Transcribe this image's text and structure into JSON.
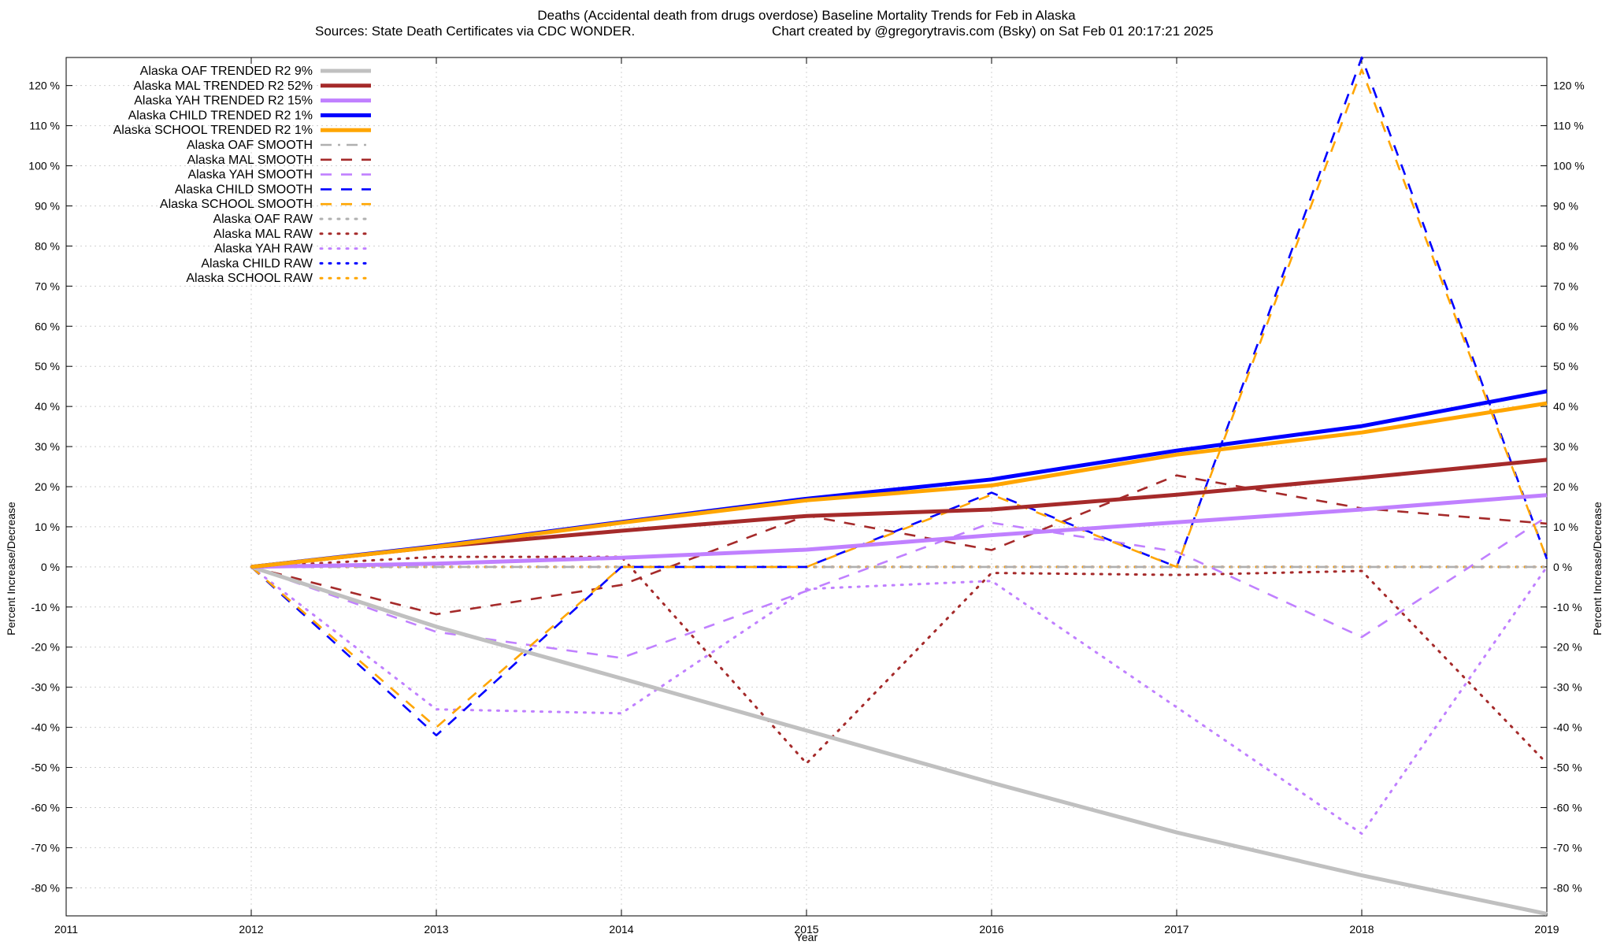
{
  "chart_data": {
    "type": "line",
    "title": "Deaths (Accidental death from drugs overdose)  Baseline Mortality Trends for Feb in Alaska",
    "subtitle_left": "Sources: State Death Certificates via CDC WONDER.",
    "subtitle_right": "Chart created by @gregorytravis.com (Bsky) on Sat Feb 01 20:17:21 2025",
    "xlabel": "Year",
    "ylabel": "Percent Increase/Decrease",
    "ylabel_right": "Percent Increase/Decrease",
    "xlim": [
      2011,
      2019
    ],
    "ylim": [
      -87,
      127
    ],
    "x_ticks": [
      2011,
      2012,
      2013,
      2014,
      2015,
      2016,
      2017,
      2018,
      2019
    ],
    "y_ticks": [
      -80,
      -70,
      -60,
      -50,
      -40,
      -30,
      -20,
      -10,
      0,
      10,
      20,
      30,
      40,
      50,
      60,
      70,
      80,
      90,
      100,
      110,
      120
    ],
    "y_tick_suffix": " %",
    "grid": true,
    "legend_position": "top-left",
    "series": [
      {
        "name": "Alaska OAF TRENDED R2",
        "r2": " 9%",
        "style": "solid",
        "color": "#c0c0c0",
        "x": [
          2012,
          2013,
          2014,
          2015,
          2016,
          2017,
          2018,
          2019
        ],
        "y": [
          0,
          -14.9,
          -27.8,
          -40.8,
          -53.8,
          -66.2,
          -76.9,
          -86.5
        ]
      },
      {
        "name": "Alaska MAL TRENDED R2",
        "r2": "52%",
        "style": "solid",
        "color": "#a52a2a",
        "x": [
          2012,
          2013,
          2014,
          2015,
          2016,
          2017,
          2018,
          2019
        ],
        "y": [
          0,
          5,
          9,
          12.7,
          14.3,
          18,
          22.2,
          26.7
        ]
      },
      {
        "name": "Alaska YAH TRENDED R2",
        "r2": "15%",
        "style": "solid",
        "color": "#c080ff",
        "x": [
          2012,
          2013,
          2014,
          2015,
          2016,
          2017,
          2018,
          2019
        ],
        "y": [
          0,
          0.8,
          2.3,
          4.3,
          7.9,
          11.1,
          14.3,
          17.9
        ]
      },
      {
        "name": "Alaska CHILD TRENDED R2",
        "r2": " 1%",
        "style": "solid",
        "color": "#0000ff",
        "x": [
          2012,
          2013,
          2014,
          2015,
          2016,
          2017,
          2018,
          2019
        ],
        "y": [
          0,
          5.2,
          11.2,
          17,
          21.8,
          29,
          35.1,
          43.8
        ]
      },
      {
        "name": "Alaska SCHOOL TRENDED R2",
        "r2": " 1%",
        "style": "solid",
        "color": "#ffa500",
        "x": [
          2012,
          2013,
          2014,
          2015,
          2016,
          2017,
          2018,
          2019
        ],
        "y": [
          0,
          5,
          11,
          16.6,
          20.3,
          28,
          33.5,
          40.8
        ]
      },
      {
        "name": "Alaska OAF SMOOTH",
        "r2": "",
        "style": "dashdot",
        "color": "#b0b0b0",
        "x": [
          2012,
          2013,
          2014,
          2015,
          2016,
          2017,
          2018,
          2019
        ],
        "y": [
          0,
          0,
          0,
          0,
          0,
          0,
          0,
          0
        ]
      },
      {
        "name": "Alaska MAL SMOOTH",
        "r2": "",
        "style": "dash",
        "color": "#a52a2a",
        "x": [
          2012,
          2013,
          2014,
          2015,
          2016,
          2017,
          2018,
          2019
        ],
        "y": [
          0,
          -11.8,
          -4.5,
          12.8,
          4.2,
          22.8,
          14.6,
          10.8
        ]
      },
      {
        "name": "Alaska YAH SMOOTH",
        "r2": "",
        "style": "dash",
        "color": "#c080ff",
        "x": [
          2012,
          2013,
          2014,
          2015,
          2016,
          2017,
          2018,
          2019
        ],
        "y": [
          0,
          -16.2,
          -22.7,
          -6,
          11,
          3.8,
          -17.5,
          12.5
        ]
      },
      {
        "name": "Alaska CHILD SMOOTH",
        "r2": "",
        "style": "dash",
        "color": "#0000ff",
        "x": [
          2012,
          2013,
          2014,
          2015,
          2016,
          2017,
          2018,
          2019
        ],
        "y": [
          0,
          -42,
          0,
          0,
          18.5,
          0,
          127,
          2
        ]
      },
      {
        "name": "Alaska SCHOOL SMOOTH",
        "r2": "",
        "style": "dash",
        "color": "#ffa500",
        "x": [
          2012,
          2013,
          2014,
          2015,
          2016,
          2017,
          2018,
          2019
        ],
        "y": [
          0,
          -40,
          0,
          0,
          18,
          0,
          124,
          2
        ]
      },
      {
        "name": "Alaska OAF RAW",
        "r2": "",
        "style": "dot",
        "color": "#b0b0b0",
        "x": [
          2012,
          2013,
          2014,
          2015,
          2016,
          2017,
          2018,
          2019
        ],
        "y": [
          0,
          0,
          0,
          0,
          0,
          0,
          0,
          0
        ]
      },
      {
        "name": "Alaska MAL RAW",
        "r2": "",
        "style": "dot",
        "color": "#a52a2a",
        "x": [
          2012,
          2013,
          2014,
          2015,
          2016,
          2017,
          2018,
          2019
        ],
        "y": [
          0,
          2.5,
          2.5,
          -49,
          -1.5,
          -2,
          -1,
          -49
        ]
      },
      {
        "name": "Alaska YAH RAW",
        "r2": "",
        "style": "dot",
        "color": "#c080ff",
        "x": [
          2012,
          2013,
          2014,
          2015,
          2016,
          2017,
          2018,
          2019
        ],
        "y": [
          0,
          -35.5,
          -36.5,
          -5.5,
          -3.5,
          -35,
          -66.5,
          0
        ]
      },
      {
        "name": "Alaska CHILD RAW",
        "r2": "",
        "style": "dot",
        "color": "#0000ff",
        "x": [
          2012,
          2013,
          2014,
          2015,
          2016,
          2017,
          2018,
          2019
        ],
        "y": [
          0,
          0,
          0,
          0,
          0,
          0,
          0,
          0
        ]
      },
      {
        "name": "Alaska SCHOOL RAW",
        "r2": "",
        "style": "dot",
        "color": "#ffa500",
        "x": [
          2012,
          2013,
          2014,
          2015,
          2016,
          2017,
          2018,
          2019
        ],
        "y": [
          0,
          0,
          0,
          0,
          0,
          0,
          0,
          0
        ]
      }
    ]
  }
}
